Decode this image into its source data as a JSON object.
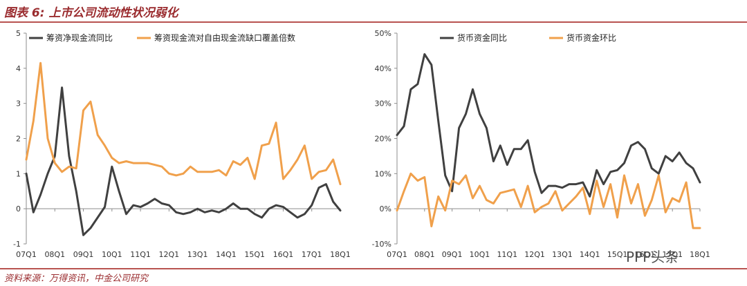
{
  "figure_title": "图表 6: 上市公司流动性状况弱化",
  "source_note": "资料来源：万得资讯，中金公司研究",
  "watermark": "PPP头条",
  "chart_data": [
    {
      "type": "line",
      "x": [
        "07Q1",
        "07Q2",
        "07Q3",
        "07Q4",
        "08Q1",
        "08Q2",
        "08Q3",
        "08Q4",
        "09Q1",
        "09Q2",
        "09Q3",
        "09Q4",
        "10Q1",
        "10Q2",
        "10Q3",
        "10Q4",
        "11Q1",
        "11Q2",
        "11Q3",
        "11Q4",
        "12Q1",
        "12Q2",
        "12Q3",
        "12Q4",
        "13Q1",
        "13Q2",
        "13Q3",
        "13Q4",
        "14Q1",
        "14Q2",
        "14Q3",
        "14Q4",
        "15Q1",
        "15Q2",
        "15Q3",
        "15Q4",
        "16Q1",
        "16Q2",
        "16Q3",
        "16Q4",
        "17Q1",
        "17Q2",
        "17Q3",
        "17Q4",
        "18Q1"
      ],
      "xticks": [
        "07Q1",
        "08Q1",
        "09Q1",
        "10Q1",
        "11Q1",
        "12Q1",
        "13Q1",
        "14Q1",
        "15Q1",
        "16Q1",
        "17Q1",
        "18Q1"
      ],
      "yticks": [
        "-1",
        "0",
        "1",
        "2",
        "3",
        "4",
        "5"
      ],
      "ylim": [
        -1,
        5
      ],
      "legend_position": "top",
      "series": [
        {
          "name": "筹资净现金流同比",
          "color": "#404040",
          "values": [
            1.0,
            -0.1,
            0.4,
            1.0,
            1.5,
            3.45,
            1.5,
            0.5,
            -0.75,
            -0.55,
            -0.25,
            0.05,
            1.2,
            0.5,
            -0.15,
            0.1,
            0.05,
            0.15,
            0.28,
            0.15,
            0.1,
            -0.1,
            -0.15,
            -0.1,
            0.0,
            -0.1,
            -0.05,
            -0.1,
            0.0,
            0.15,
            0.0,
            0.0,
            -0.15,
            -0.25,
            0.0,
            0.1,
            0.05,
            -0.1,
            -0.25,
            -0.15,
            0.1,
            0.6,
            0.7,
            0.2,
            -0.05
          ]
        },
        {
          "name": "筹资现金流对自由现金流缺口覆盖倍数",
          "color": "#f0a04b",
          "values": [
            1.4,
            2.5,
            4.15,
            2.0,
            1.3,
            1.05,
            1.2,
            1.15,
            2.8,
            3.05,
            2.1,
            1.8,
            1.45,
            1.3,
            1.35,
            1.3,
            1.3,
            1.3,
            1.25,
            1.2,
            1.0,
            0.95,
            1.0,
            1.2,
            1.05,
            1.05,
            1.05,
            1.1,
            0.95,
            1.35,
            1.25,
            1.45,
            0.85,
            1.8,
            1.85,
            2.45,
            0.85,
            1.1,
            1.4,
            1.8,
            0.85,
            1.05,
            1.1,
            1.4,
            0.7
          ]
        }
      ]
    },
    {
      "type": "line",
      "x": [
        "07Q1",
        "07Q2",
        "07Q3",
        "07Q4",
        "08Q1",
        "08Q2",
        "08Q3",
        "08Q4",
        "09Q1",
        "09Q2",
        "09Q3",
        "09Q4",
        "10Q1",
        "10Q2",
        "10Q3",
        "10Q4",
        "11Q1",
        "11Q2",
        "11Q3",
        "11Q4",
        "12Q1",
        "12Q2",
        "12Q3",
        "12Q4",
        "13Q1",
        "13Q2",
        "13Q3",
        "13Q4",
        "14Q1",
        "14Q2",
        "14Q3",
        "14Q4",
        "15Q1",
        "15Q2",
        "15Q3",
        "15Q4",
        "16Q1",
        "16Q2",
        "16Q3",
        "16Q4",
        "17Q1",
        "17Q2",
        "17Q3",
        "17Q4",
        "18Q1"
      ],
      "xticks": [
        "07Q1",
        "08Q1",
        "09Q1",
        "10Q1",
        "11Q1",
        "12Q1",
        "13Q1",
        "14Q1",
        "15Q1",
        "16Q1",
        "17Q1",
        "18Q1"
      ],
      "yticks": [
        "-10%",
        "0%",
        "10%",
        "20%",
        "30%",
        "40%",
        "50%"
      ],
      "ylim": [
        -10,
        50
      ],
      "legend_position": "top",
      "series": [
        {
          "name": "货币资金同比",
          "color": "#404040",
          "values": [
            21,
            23.5,
            34,
            35.5,
            44,
            41,
            25,
            9.5,
            5,
            23,
            27,
            34,
            27,
            23,
            13.5,
            18,
            12.5,
            17,
            17,
            19.5,
            10.5,
            4.5,
            6.5,
            6.5,
            6,
            7,
            7,
            7.5,
            3.5,
            11,
            7,
            10.5,
            11,
            13,
            18,
            19,
            17,
            11.5,
            10,
            15,
            13.5,
            16,
            13,
            11.5,
            7.5
          ]
        },
        {
          "name": "货币资金环比",
          "color": "#f0a04b",
          "values": [
            -0.5,
            5,
            10,
            8,
            9,
            -5,
            3.5,
            -0.5,
            8,
            7,
            9.5,
            3,
            6.5,
            2.5,
            1.5,
            4.5,
            5,
            5.5,
            0.5,
            6.5,
            -1,
            0.5,
            1.5,
            5,
            -0.5,
            1.5,
            3.5,
            6,
            -1.5,
            8,
            0.5,
            7,
            -2.5,
            9.5,
            1.5,
            7,
            -2,
            2.5,
            9.5,
            -1,
            3,
            2,
            7.5,
            -5.5,
            -5.5
          ]
        }
      ]
    }
  ]
}
